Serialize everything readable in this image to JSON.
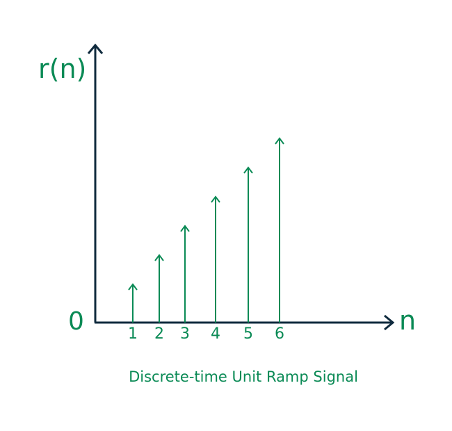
{
  "labels": {
    "y_axis": "r(n)",
    "x_axis": "n",
    "origin": "0",
    "caption": "Discrete-time Unit Ramp Signal"
  },
  "colors": {
    "axis": "#0f2a3d",
    "signal": "#0a8a55"
  },
  "chart_data": {
    "type": "stem",
    "x": [
      1,
      2,
      3,
      4,
      5,
      6
    ],
    "y": [
      1,
      2,
      3,
      4,
      5,
      6
    ],
    "xlabel": "n",
    "ylabel": "r(n)",
    "tick_labels": [
      "1",
      "2",
      "3",
      "4",
      "5",
      "6"
    ],
    "title": "Discrete-time Unit Ramp Signal"
  }
}
